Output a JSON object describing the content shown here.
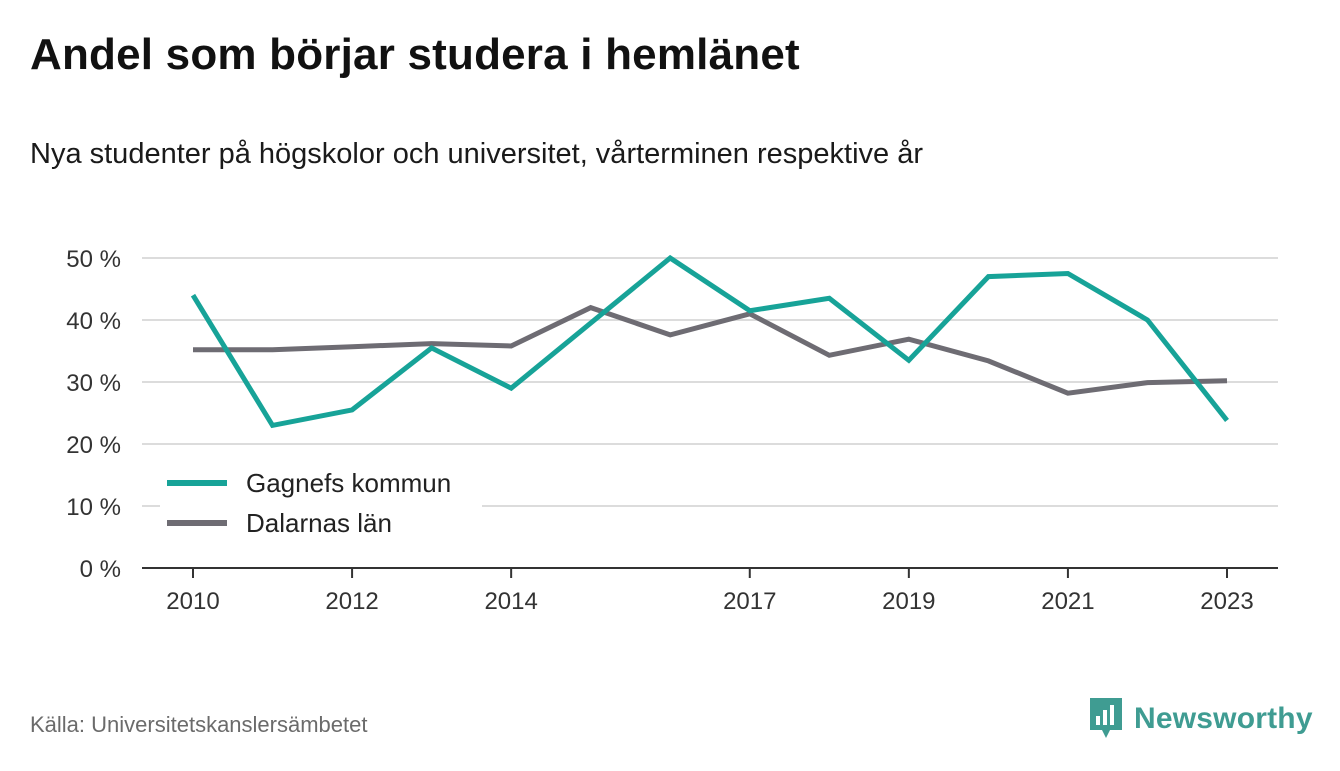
{
  "header": {
    "title": "Andel som börjar studera i hemlänet",
    "subtitle": "Nya studenter på högskolor och universitet, vårterminen respektive år"
  },
  "footer": {
    "source": "Källa: Universitetskanslersämbetet",
    "brand": "Newsworthy",
    "brand_icon": "bar-chart-speech-bubble-icon"
  },
  "colors": {
    "gagnef": "#17a398",
    "dalarna": "#6e6c73",
    "grid": "#dcdcdc",
    "axis": "#333333",
    "brand": "#3f9c92"
  },
  "chart_data": {
    "type": "line",
    "x": [
      2010,
      2011,
      2012,
      2013,
      2014,
      2015,
      2016,
      2017,
      2018,
      2019,
      2020,
      2021,
      2022,
      2023
    ],
    "x_tick_labels": [
      "2010",
      "2012",
      "2014",
      "2017",
      "2019",
      "2021",
      "2023"
    ],
    "x_tick_values": [
      2010,
      2012,
      2014,
      2017,
      2019,
      2021,
      2023
    ],
    "y_tick_values": [
      0,
      10,
      20,
      30,
      40,
      50
    ],
    "y_tick_labels": [
      "0 %",
      "10 %",
      "20 %",
      "30 %",
      "40 %",
      "50 %"
    ],
    "ylim": [
      0,
      50
    ],
    "grid": true,
    "legend_position": "bottom-left",
    "series": [
      {
        "name": "Gagnefs kommun",
        "values": [
          44,
          23,
          25.5,
          35.5,
          29,
          39.5,
          50,
          41.5,
          43.5,
          33.5,
          47,
          47.5,
          40,
          23.8
        ]
      },
      {
        "name": "Dalarnas län",
        "values": [
          35.2,
          35.2,
          35.7,
          36.2,
          35.8,
          42,
          37.6,
          41,
          34.3,
          36.9,
          33.4,
          28.2,
          29.9,
          30.2
        ]
      }
    ]
  }
}
